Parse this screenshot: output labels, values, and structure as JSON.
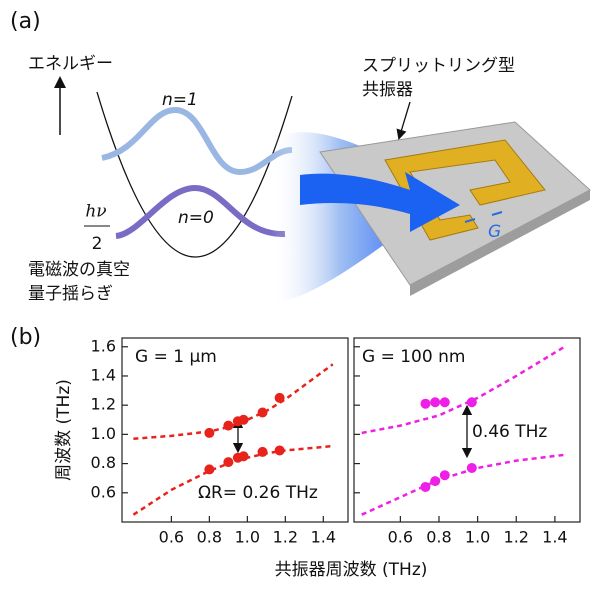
{
  "diagram": {
    "panel_a": "(a)",
    "energy": "エネルギー",
    "n1": "n=1",
    "n0": "n=0",
    "hv": "hν",
    "two": "2",
    "vacuum1": "電磁波の真空",
    "vacuum2": "量子揺らぎ",
    "resonator1": "スプリットリング型",
    "resonator2": "共振器",
    "gap": "G"
  },
  "figure": {
    "panel_b": "(b)",
    "ylabel": "周波数 (THz)",
    "xlabel": "共振器周波数 (THz)"
  },
  "chart_data": [
    {
      "type": "scatter",
      "annotations": [
        "G = 1 μm",
        "ΩR= 0.26 THz"
      ],
      "xlim": [
        0.34,
        1.53
      ],
      "ylim": [
        0.4,
        1.66
      ],
      "xticks": [
        0.6,
        0.8,
        {
          "value": 1,
          "label": "1.0"
        },
        1.2,
        1.4
      ],
      "yticks": [
        0.6,
        0.8,
        {
          "value": 1,
          "label": "1.0"
        },
        1.2,
        1.4,
        1.6
      ],
      "show_ytick_labels": true,
      "series": [
        {
          "style": "points",
          "color": "#e8231c",
          "x": [
            0.8,
            0.9,
            0.95,
            0.98,
            1.08,
            1.17
          ],
          "values": [
            1.01,
            1.06,
            1.09,
            1.1,
            1.15,
            1.25
          ]
        },
        {
          "style": "points",
          "color": "#e8231c",
          "x": [
            0.8,
            0.9,
            0.95,
            0.98,
            1.08,
            1.17
          ],
          "values": [
            0.76,
            0.81,
            0.84,
            0.85,
            0.88,
            0.89
          ]
        },
        {
          "style": "dashed",
          "color": "#e8231c",
          "x": [
            0.4,
            0.6,
            0.8,
            0.9,
            1.0,
            1.1,
            1.2,
            1.45
          ],
          "values": [
            0.97,
            0.99,
            1.02,
            1.05,
            1.1,
            1.16,
            1.24,
            1.48
          ]
        },
        {
          "style": "dashed",
          "color": "#e8231c",
          "x": [
            0.4,
            0.6,
            0.8,
            0.9,
            1.0,
            1.1,
            1.2,
            1.45
          ],
          "values": [
            0.45,
            0.62,
            0.75,
            0.8,
            0.84,
            0.87,
            0.89,
            0.92
          ]
        }
      ]
    },
    {
      "type": "scatter",
      "annotations": [
        "G = 100 nm",
        "0.46 THz"
      ],
      "xlim": [
        0.36,
        1.53
      ],
      "ylim": [
        0.4,
        1.66
      ],
      "xticks": [
        0.6,
        0.8,
        {
          "value": 1,
          "label": "1.0"
        },
        1.2,
        1.4
      ],
      "yticks": [
        0.6,
        0.8,
        1,
        1.2,
        1.4,
        1.6
      ],
      "show_ytick_labels": false,
      "series": [
        {
          "style": "points",
          "color": "#ee1fe6",
          "x": [
            0.73,
            0.78,
            0.83,
            0.97
          ],
          "values": [
            1.21,
            1.22,
            1.22,
            1.22
          ]
        },
        {
          "style": "points",
          "color": "#ee1fe6",
          "x": [
            0.73,
            0.78,
            0.83,
            0.97
          ],
          "values": [
            0.64,
            0.68,
            0.72,
            0.77
          ]
        },
        {
          "style": "dashed",
          "color": "#ee1fe6",
          "x": [
            0.4,
            0.6,
            0.8,
            1.0,
            1.2,
            1.45
          ],
          "values": [
            1.01,
            1.06,
            1.13,
            1.25,
            1.4,
            1.6
          ]
        },
        {
          "style": "dashed",
          "color": "#ee1fe6",
          "x": [
            0.4,
            0.6,
            0.8,
            1.0,
            1.2,
            1.45
          ],
          "values": [
            0.45,
            0.57,
            0.69,
            0.77,
            0.82,
            0.86
          ]
        }
      ]
    }
  ]
}
